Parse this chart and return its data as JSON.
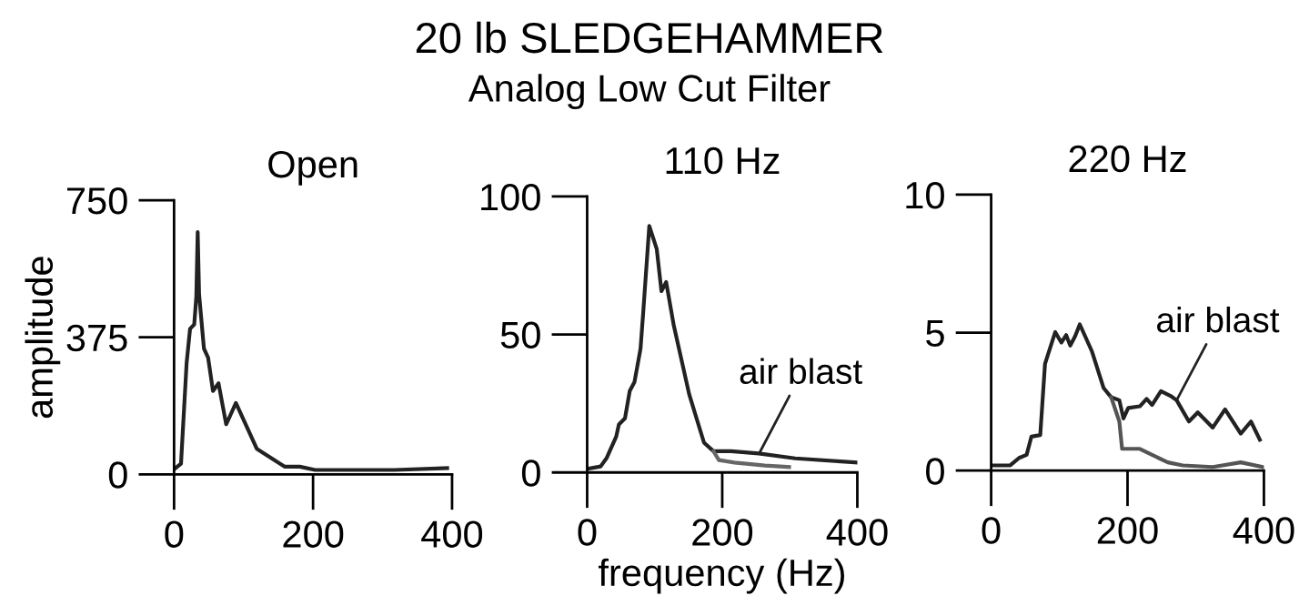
{
  "chart_data": [
    {
      "type": "line",
      "title": "Open",
      "ylabel": "amplitude",
      "annotations": [
        "20 lb SLEDGEHAMMER",
        "Analog Low Cut Filter"
      ],
      "xlim": [
        0,
        400
      ],
      "ylim": [
        0,
        750
      ],
      "xticks": [
        0,
        200,
        400
      ],
      "yticks": [
        0,
        375,
        750
      ],
      "grid": false,
      "legend": false,
      "marker": "none",
      "line_style": "solid",
      "series": [
        {
          "color": "#222222",
          "x": [
            2,
            10,
            18,
            23,
            29,
            32,
            34,
            36,
            43,
            49,
            56,
            64,
            75,
            89,
            119,
            159,
            181,
            203,
            317,
            393
          ],
          "values": [
            17,
            29,
            303,
            398,
            410,
            485,
            663,
            493,
            344,
            319,
            228,
            249,
            137,
            195,
            70,
            21,
            21,
            12,
            12,
            17
          ]
        }
      ]
    },
    {
      "type": "line",
      "title": "110 Hz",
      "xlabel": "frequency (Hz)",
      "annotations": [
        {
          "text": "air blast",
          "x": 256,
          "y": 7.5
        }
      ],
      "xlim": [
        0,
        400
      ],
      "ylim": [
        0,
        100
      ],
      "xticks": [
        0,
        200,
        400
      ],
      "yticks": [
        0,
        50,
        100
      ],
      "grid": false,
      "legend": false,
      "marker": "none",
      "line_style": "solid",
      "series": [
        {
          "color": "#222222",
          "x": [
            2,
            20,
            29,
            43,
            47,
            56,
            63,
            70,
            79,
            83,
            92,
            103,
            110,
            117,
            128,
            151,
            173,
            187,
            213,
            254,
            308,
            400
          ],
          "values": [
            1.4,
            2.2,
            5.3,
            13,
            17.4,
            19.6,
            29.5,
            32.7,
            44.8,
            58,
            89.3,
            81,
            65.7,
            69,
            53.6,
            28.4,
            10.8,
            7.7,
            7.7,
            6.9,
            5.1,
            3.6
          ]
        },
        {
          "color": "#666666",
          "x": [
            187,
            195,
            218,
            263,
            299
          ],
          "values": [
            7.7,
            4.5,
            3.6,
            2.5,
            2.0
          ]
        }
      ]
    },
    {
      "type": "line",
      "title": "220 Hz",
      "annotations": [
        {
          "text": "air blast",
          "x": 272,
          "y": 2.55
        }
      ],
      "xlim": [
        0,
        400
      ],
      "ylim": [
        0,
        10
      ],
      "xticks": [
        0,
        200,
        400
      ],
      "yticks": [
        0,
        5,
        10
      ],
      "grid": false,
      "legend": false,
      "marker": "none",
      "line_style": "solid",
      "series": [
        {
          "color": "#222222",
          "x": [
            1,
            28,
            41,
            52,
            59,
            72,
            79,
            94,
            103,
            110,
            116,
            123,
            130,
            148,
            165,
            176,
            188,
            194,
            201,
            218,
            228,
            236,
            249,
            263,
            272,
            290,
            303,
            325,
            343,
            366,
            381,
            394
          ],
          "values": [
            0.19,
            0.19,
            0.46,
            0.57,
            1.23,
            1.29,
            3.87,
            5.02,
            4.64,
            4.91,
            4.53,
            4.86,
            5.3,
            4.31,
            2.99,
            2.66,
            2.55,
            1.89,
            2.27,
            2.33,
            2.6,
            2.38,
            2.88,
            2.71,
            2.55,
            1.78,
            2.11,
            1.56,
            2.22,
            1.34,
            1.78,
            1.12
          ]
        },
        {
          "color": "#555555",
          "x": [
            176,
            188,
            192,
            218,
            236,
            259,
            281,
            325,
            366,
            399
          ],
          "values": [
            2.66,
            1.78,
            0.79,
            0.79,
            0.57,
            0.3,
            0.19,
            0.13,
            0.3,
            0.13
          ]
        }
      ]
    }
  ]
}
